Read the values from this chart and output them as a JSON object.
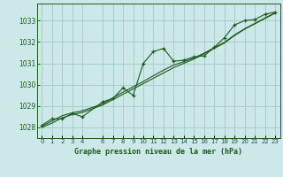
{
  "title": "Graphe pression niveau de la mer (hPa)",
  "bg_color": "#cce8e8",
  "grid_color": "#aacccc",
  "line_color": "#1a5c1a",
  "text_color": "#1a5c1a",
  "xlim": [
    -0.5,
    23.5
  ],
  "ylim": [
    1027.5,
    1033.8
  ],
  "yticks": [
    1028,
    1029,
    1030,
    1031,
    1032,
    1033
  ],
  "xtick_vals": [
    0,
    1,
    2,
    3,
    4,
    6,
    7,
    8,
    9,
    10,
    11,
    12,
    13,
    14,
    15,
    16,
    17,
    18,
    19,
    20,
    21,
    22,
    23
  ],
  "xtick_labels": [
    "0",
    "1",
    "2",
    "3",
    "4",
    "6",
    "7",
    "8",
    "9",
    "10",
    "11",
    "12",
    "13",
    "14",
    "15",
    "16",
    "17",
    "18",
    "19",
    "20",
    "21",
    "22",
    "23"
  ],
  "hours": [
    0,
    1,
    2,
    3,
    4,
    6,
    7,
    8,
    9,
    10,
    11,
    12,
    13,
    14,
    15,
    16,
    17,
    18,
    19,
    20,
    21,
    22,
    23
  ],
  "pressure": [
    1028.1,
    1028.4,
    1028.4,
    1028.65,
    1028.5,
    1029.2,
    1029.35,
    1029.85,
    1029.5,
    1031.0,
    1031.55,
    1031.7,
    1031.1,
    1031.15,
    1031.3,
    1031.35,
    1031.75,
    1032.2,
    1032.8,
    1033.0,
    1033.05,
    1033.3,
    1033.4
  ],
  "smooth1": [
    1028.0,
    1028.2,
    1028.45,
    1028.6,
    1028.7,
    1029.05,
    1029.3,
    1029.55,
    1029.8,
    1030.05,
    1030.3,
    1030.55,
    1030.8,
    1031.0,
    1031.2,
    1031.45,
    1031.7,
    1031.95,
    1032.3,
    1032.6,
    1032.85,
    1033.1,
    1033.35
  ],
  "smooth2": [
    1028.05,
    1028.3,
    1028.55,
    1028.68,
    1028.78,
    1029.1,
    1029.38,
    1029.65,
    1029.9,
    1030.15,
    1030.42,
    1030.68,
    1030.92,
    1031.08,
    1031.25,
    1031.48,
    1031.73,
    1031.98,
    1032.33,
    1032.62,
    1032.87,
    1033.12,
    1033.37
  ]
}
